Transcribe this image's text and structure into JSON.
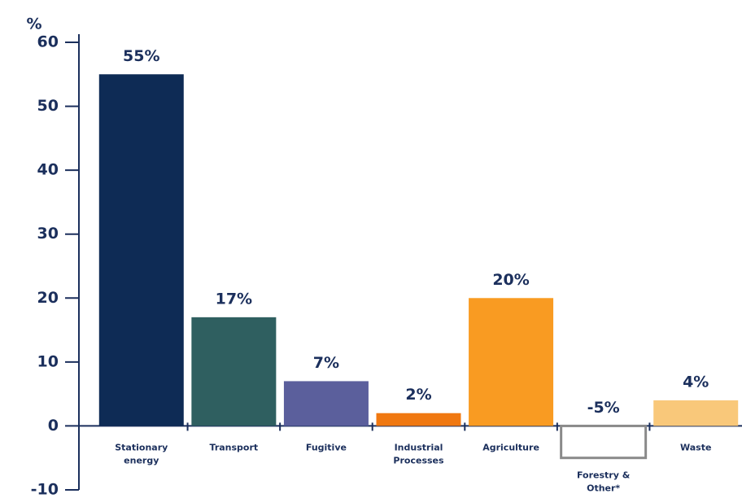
{
  "chart_data": {
    "type": "bar",
    "y_label": "%",
    "categories": [
      "Stationary\nenergy",
      "Transport",
      "Fugitive",
      "Industrial\nProcesses",
      "Agriculture",
      "Forestry &\nOther*",
      "Waste"
    ],
    "values": [
      55,
      17,
      7,
      2,
      20,
      -5,
      4
    ],
    "value_labels": [
      "55%",
      "17%",
      "7%",
      "2%",
      "20%",
      "-5%",
      "4%"
    ],
    "colors": [
      "#0e2b55",
      "#2f5f60",
      "#5b5f9c",
      "#f07810",
      "#f99b22",
      "none",
      "#f9c87a"
    ],
    "ylim": [
      -10,
      60
    ],
    "yticks": [
      -10,
      0,
      10,
      20,
      30,
      40,
      50,
      60
    ]
  }
}
